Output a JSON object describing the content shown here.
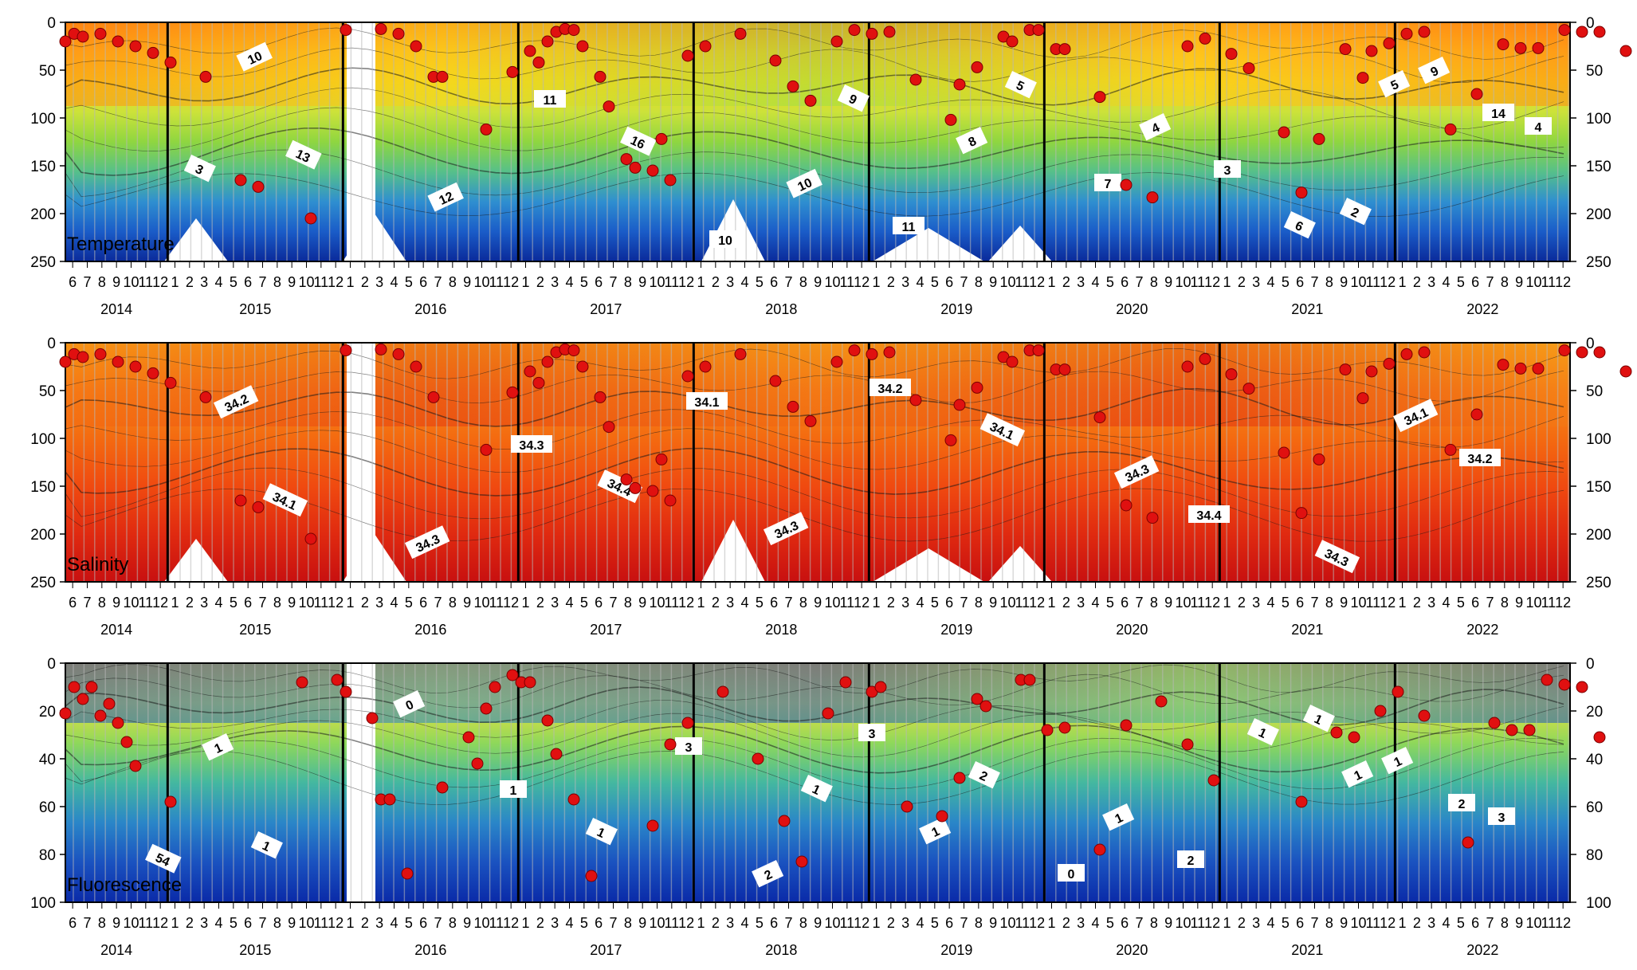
{
  "chart_data": [
    {
      "type": "heatmap",
      "variable": "Temperature",
      "title": "Temperature",
      "ylim": [
        0,
        250
      ],
      "y_ticks": [
        0,
        50,
        100,
        150,
        200,
        250
      ],
      "y_tick_labels": [
        "0",
        "50",
        "100",
        "150",
        "200",
        "250"
      ],
      "ylabel": "",
      "colorscale": [
        "#0a2a9a",
        "#1a5cc8",
        "#2f8fd0",
        "#56c08a",
        "#8fd640",
        "#cce23a",
        "#f3d51a",
        "#ffb21a",
        "#ff7a10"
      ],
      "contour_labels": [
        "10",
        "11",
        "16",
        "10",
        "11",
        "5",
        "4",
        "3",
        "2",
        "9",
        "14",
        "13",
        "12",
        "10",
        "9",
        "8",
        "7",
        "6",
        "5",
        "4",
        "3"
      ],
      "points": [
        [
          0.0,
          20
        ],
        [
          0.05,
          12
        ],
        [
          0.1,
          15
        ],
        [
          0.2,
          12
        ],
        [
          0.3,
          20
        ],
        [
          0.4,
          25
        ],
        [
          0.5,
          32
        ],
        [
          0.6,
          42
        ],
        [
          0.8,
          57
        ],
        [
          1.0,
          165
        ],
        [
          1.1,
          172
        ],
        [
          1.4,
          205
        ],
        [
          1.6,
          8
        ],
        [
          1.8,
          7
        ],
        [
          1.9,
          12
        ],
        [
          2.0,
          25
        ],
        [
          2.1,
          57
        ],
        [
          2.15,
          57
        ],
        [
          2.4,
          112
        ],
        [
          2.55,
          52
        ],
        [
          2.65,
          30
        ],
        [
          2.7,
          42
        ],
        [
          2.75,
          20
        ],
        [
          2.8,
          10
        ],
        [
          2.85,
          7
        ],
        [
          2.9,
          8
        ],
        [
          2.95,
          25
        ],
        [
          3.05,
          57
        ],
        [
          3.1,
          88
        ],
        [
          3.2,
          143
        ],
        [
          3.25,
          152
        ],
        [
          3.35,
          155
        ],
        [
          3.4,
          122
        ],
        [
          3.45,
          165
        ],
        [
          3.55,
          35
        ],
        [
          3.65,
          25
        ],
        [
          3.85,
          12
        ],
        [
          4.05,
          40
        ],
        [
          4.15,
          67
        ],
        [
          4.25,
          82
        ],
        [
          4.4,
          20
        ],
        [
          4.5,
          8
        ],
        [
          4.6,
          12
        ],
        [
          4.7,
          10
        ],
        [
          4.85,
          60
        ],
        [
          5.05,
          102
        ],
        [
          5.1,
          65
        ],
        [
          5.2,
          47
        ],
        [
          5.35,
          15
        ],
        [
          5.4,
          20
        ],
        [
          5.5,
          8
        ],
        [
          5.55,
          8
        ],
        [
          5.65,
          28
        ],
        [
          5.7,
          28
        ],
        [
          5.9,
          78
        ],
        [
          6.05,
          170
        ],
        [
          6.2,
          183
        ],
        [
          6.4,
          25
        ],
        [
          6.5,
          17
        ],
        [
          6.65,
          33
        ],
        [
          6.75,
          48
        ],
        [
          6.95,
          115
        ],
        [
          7.05,
          178
        ],
        [
          7.15,
          122
        ],
        [
          7.3,
          28
        ],
        [
          7.4,
          58
        ],
        [
          7.45,
          30
        ],
        [
          7.55,
          22
        ],
        [
          7.65,
          12
        ],
        [
          7.75,
          10
        ],
        [
          7.9,
          112
        ],
        [
          8.05,
          75
        ],
        [
          8.2,
          23
        ],
        [
          8.3,
          27
        ],
        [
          8.4,
          27
        ],
        [
          8.55,
          8
        ],
        [
          8.65,
          10
        ],
        [
          8.75,
          10
        ],
        [
          8.9,
          30
        ]
      ]
    },
    {
      "type": "heatmap",
      "variable": "Salinity",
      "title": "Salinity",
      "ylim": [
        0,
        250
      ],
      "y_ticks": [
        0,
        50,
        100,
        150,
        200,
        250
      ],
      "y_tick_labels": [
        "0",
        "50",
        "100",
        "150",
        "200",
        "250"
      ],
      "ylabel": "",
      "colorscale": [
        "#c81010",
        "#e02a10",
        "#f04a10",
        "#f46a10",
        "#f88a18",
        "#fbc41a",
        "#f3e020",
        "#2e9a9a"
      ],
      "contour_labels": [
        "34.2",
        "34.3",
        "34.4",
        "34.3",
        "34.2",
        "34.1",
        "34.3",
        "34.4",
        "34.3",
        "34.1",
        "34.2",
        "34.1",
        "34.3",
        "34.1"
      ],
      "points": [
        [
          0.0,
          20
        ],
        [
          0.05,
          12
        ],
        [
          0.1,
          15
        ],
        [
          0.2,
          12
        ],
        [
          0.3,
          20
        ],
        [
          0.4,
          25
        ],
        [
          0.5,
          32
        ],
        [
          0.6,
          42
        ],
        [
          0.8,
          57
        ],
        [
          1.0,
          165
        ],
        [
          1.1,
          172
        ],
        [
          1.4,
          205
        ],
        [
          1.6,
          8
        ],
        [
          1.8,
          7
        ],
        [
          1.9,
          12
        ],
        [
          2.0,
          25
        ],
        [
          2.1,
          57
        ],
        [
          2.4,
          112
        ],
        [
          2.55,
          52
        ],
        [
          2.65,
          30
        ],
        [
          2.7,
          42
        ],
        [
          2.75,
          20
        ],
        [
          2.8,
          10
        ],
        [
          2.85,
          7
        ],
        [
          2.9,
          8
        ],
        [
          2.95,
          25
        ],
        [
          3.05,
          57
        ],
        [
          3.1,
          88
        ],
        [
          3.2,
          143
        ],
        [
          3.25,
          152
        ],
        [
          3.35,
          155
        ],
        [
          3.4,
          122
        ],
        [
          3.45,
          165
        ],
        [
          3.55,
          35
        ],
        [
          3.65,
          25
        ],
        [
          3.85,
          12
        ],
        [
          4.05,
          40
        ],
        [
          4.15,
          67
        ],
        [
          4.25,
          82
        ],
        [
          4.4,
          20
        ],
        [
          4.5,
          8
        ],
        [
          4.6,
          12
        ],
        [
          4.7,
          10
        ],
        [
          4.85,
          60
        ],
        [
          5.05,
          102
        ],
        [
          5.1,
          65
        ],
        [
          5.2,
          47
        ],
        [
          5.35,
          15
        ],
        [
          5.4,
          20
        ],
        [
          5.5,
          8
        ],
        [
          5.55,
          8
        ],
        [
          5.65,
          28
        ],
        [
          5.7,
          28
        ],
        [
          5.9,
          78
        ],
        [
          6.05,
          170
        ],
        [
          6.2,
          183
        ],
        [
          6.4,
          25
        ],
        [
          6.5,
          17
        ],
        [
          6.65,
          33
        ],
        [
          6.75,
          48
        ],
        [
          6.95,
          115
        ],
        [
          7.05,
          178
        ],
        [
          7.15,
          122
        ],
        [
          7.3,
          28
        ],
        [
          7.4,
          58
        ],
        [
          7.45,
          30
        ],
        [
          7.55,
          22
        ],
        [
          7.65,
          12
        ],
        [
          7.75,
          10
        ],
        [
          7.9,
          112
        ],
        [
          8.05,
          75
        ],
        [
          8.2,
          23
        ],
        [
          8.3,
          27
        ],
        [
          8.4,
          27
        ],
        [
          8.55,
          8
        ],
        [
          8.65,
          10
        ],
        [
          8.75,
          10
        ],
        [
          8.9,
          30
        ]
      ]
    },
    {
      "type": "heatmap",
      "variable": "Fluorescence",
      "title": "Fluorescence",
      "ylim": [
        0,
        100
      ],
      "y_ticks": [
        0,
        20,
        40,
        60,
        80,
        100
      ],
      "y_tick_labels": [
        "0",
        "20",
        "40",
        "60",
        "80",
        "100"
      ],
      "ylabel": "",
      "colorscale": [
        "#0a2aa8",
        "#1a52c0",
        "#2a86c8",
        "#44b8a0",
        "#8fd85a",
        "#e8e040",
        "#f6b020",
        "#101010"
      ],
      "contour_labels": [
        "1",
        "1",
        "1",
        "2",
        "3",
        "2",
        "1",
        "2",
        "1",
        "1",
        "2",
        "1",
        "0",
        "3",
        "1",
        "1",
        "0",
        "1",
        "1",
        "3",
        "54"
      ],
      "points": [
        [
          0.0,
          21
        ],
        [
          0.05,
          10
        ],
        [
          0.1,
          15
        ],
        [
          0.15,
          10
        ],
        [
          0.2,
          22
        ],
        [
          0.25,
          17
        ],
        [
          0.3,
          25
        ],
        [
          0.35,
          33
        ],
        [
          0.4,
          43
        ],
        [
          0.6,
          58
        ],
        [
          1.35,
          8
        ],
        [
          1.55,
          7
        ],
        [
          1.6,
          12
        ],
        [
          1.75,
          23
        ],
        [
          1.8,
          57
        ],
        [
          1.85,
          57
        ],
        [
          1.95,
          88
        ],
        [
          2.15,
          52
        ],
        [
          2.3,
          31
        ],
        [
          2.35,
          42
        ],
        [
          2.4,
          19
        ],
        [
          2.45,
          10
        ],
        [
          2.55,
          5
        ],
        [
          2.6,
          8
        ],
        [
          2.65,
          8
        ],
        [
          2.75,
          24
        ],
        [
          2.8,
          38
        ],
        [
          2.9,
          57
        ],
        [
          3.0,
          89
        ],
        [
          3.35,
          68
        ],
        [
          3.45,
          34
        ],
        [
          3.55,
          25
        ],
        [
          3.75,
          12
        ],
        [
          3.95,
          40
        ],
        [
          4.1,
          66
        ],
        [
          4.2,
          83
        ],
        [
          4.35,
          21
        ],
        [
          4.45,
          8
        ],
        [
          4.6,
          12
        ],
        [
          4.65,
          10
        ],
        [
          4.8,
          60
        ],
        [
          5.0,
          64
        ],
        [
          5.1,
          48
        ],
        [
          5.2,
          15
        ],
        [
          5.25,
          18
        ],
        [
          5.45,
          7
        ],
        [
          5.5,
          7
        ],
        [
          5.6,
          28
        ],
        [
          5.7,
          27
        ],
        [
          5.9,
          78
        ],
        [
          6.05,
          26
        ],
        [
          6.25,
          16
        ],
        [
          6.4,
          34
        ],
        [
          6.55,
          49
        ],
        [
          7.05,
          58
        ],
        [
          7.25,
          29
        ],
        [
          7.35,
          31
        ],
        [
          7.5,
          20
        ],
        [
          7.6,
          12
        ],
        [
          7.75,
          22
        ],
        [
          8.0,
          75
        ],
        [
          8.15,
          25
        ],
        [
          8.25,
          28
        ],
        [
          8.35,
          28
        ],
        [
          8.45,
          7
        ],
        [
          8.55,
          9
        ],
        [
          8.65,
          10
        ],
        [
          8.75,
          31
        ]
      ]
    }
  ],
  "axes": {
    "years": [
      "2014",
      "2015",
      "2016",
      "2017",
      "2018",
      "2019",
      "2020",
      "2021",
      "2022"
    ],
    "first_year_months": [
      "6",
      "7",
      "8",
      "9",
      "10",
      "11",
      "12"
    ],
    "months": [
      "1",
      "2",
      "3",
      "4",
      "5",
      "6",
      "7",
      "8",
      "9",
      "10",
      "11",
      "12"
    ]
  }
}
